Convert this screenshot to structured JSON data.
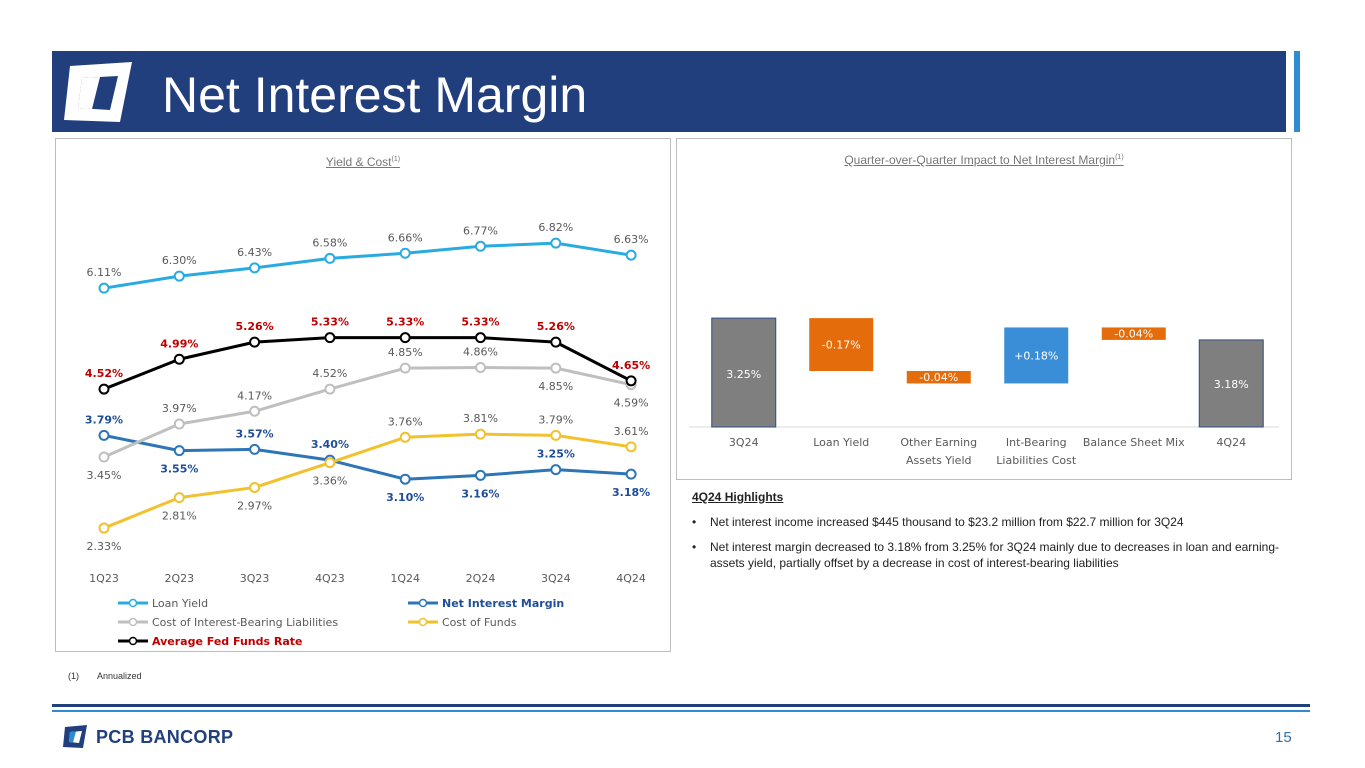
{
  "header": {
    "title": "Net Interest Margin"
  },
  "colors": {
    "navy": "#213e7d",
    "accent_blue": "#2d8dd0",
    "loan_yield": "#29abe2",
    "nim": "#2e75b6",
    "cost_ibl": "#bfbfbf",
    "cost_funds": "#f2c12e",
    "fed_funds": "#000000",
    "fed_label": "#c00000",
    "nim_label": "#1f4e99",
    "waterfall_gray": "#7f7f7f",
    "waterfall_orange": "#e46c0a",
    "waterfall_blue": "#3a8ed8"
  },
  "chart_data": [
    {
      "type": "line",
      "title": "Yield & Cost",
      "title_sup": "(1)",
      "categories": [
        "1Q23",
        "2Q23",
        "3Q23",
        "4Q23",
        "1Q24",
        "2Q24",
        "3Q24",
        "4Q24"
      ],
      "ylim": [
        2.0,
        7.2
      ],
      "series": [
        {
          "name": "Loan Yield",
          "color": "#29abe2",
          "label_color": "#595959",
          "values": [
            6.11,
            6.3,
            6.43,
            6.58,
            6.66,
            6.77,
            6.82,
            6.63
          ],
          "labels": [
            "6.11%",
            "6.30%",
            "6.43%",
            "6.58%",
            "6.66%",
            "6.77%",
            "6.82%",
            "6.63%"
          ],
          "label_pos": [
            "above",
            "above",
            "above",
            "above",
            "above",
            "above",
            "above",
            "above"
          ]
        },
        {
          "name": "Net Interest Margin",
          "color": "#2e75b6",
          "label_color": "#1f4e99",
          "values": [
            3.79,
            3.55,
            3.57,
            3.4,
            3.1,
            3.16,
            3.25,
            3.18
          ],
          "labels": [
            "3.79%",
            "3.55%",
            "3.57%",
            "3.40%",
            "3.10%",
            "3.16%",
            "3.25%",
            "3.18%"
          ],
          "label_pos": [
            "above",
            "below",
            "above",
            "above",
            "below",
            "below",
            "above",
            "below"
          ]
        },
        {
          "name": "Cost of Interest-Bearing Liabilities",
          "color": "#bfbfbf",
          "label_color": "#595959",
          "values": [
            3.45,
            3.97,
            4.17,
            4.52,
            4.85,
            4.86,
            4.85,
            4.59
          ],
          "labels": [
            "3.45%",
            "3.97%",
            "4.17%",
            "4.52%",
            "4.85%",
            "4.86%",
            "4.85%",
            "4.59%"
          ],
          "label_pos": [
            "below",
            "above",
            "above",
            "above",
            "above",
            "above",
            "below",
            "below"
          ]
        },
        {
          "name": "Cost of Funds",
          "color": "#f2c12e",
          "label_color": "#595959",
          "values": [
            2.33,
            2.81,
            2.97,
            3.36,
            3.76,
            3.81,
            3.79,
            3.61
          ],
          "labels": [
            "2.33%",
            "2.81%",
            "2.97%",
            "3.36%",
            "3.76%",
            "3.81%",
            "3.79%",
            "3.61%"
          ],
          "label_pos": [
            "below",
            "below",
            "below",
            "below",
            "above",
            "above",
            "above",
            "above"
          ]
        },
        {
          "name": "Average Fed Funds Rate",
          "color": "#000000",
          "label_color": "#c00000",
          "values": [
            4.52,
            4.99,
            5.26,
            5.33,
            5.33,
            5.33,
            5.26,
            4.65
          ],
          "labels": [
            "4.52%",
            "4.99%",
            "5.26%",
            "5.33%",
            "5.33%",
            "5.33%",
            "5.26%",
            "4.65%"
          ],
          "label_pos": [
            "above",
            "above",
            "above",
            "above",
            "above",
            "above",
            "above",
            "above"
          ]
        }
      ],
      "legend": [
        "Loan Yield",
        "Net Interest Margin",
        "Cost of Interest-Bearing Liabilities",
        "Cost of Funds",
        "Average Fed Funds Rate"
      ],
      "legend_placement": "bottom"
    },
    {
      "type": "bar",
      "subtype": "waterfall",
      "title": "Quarter-over-Quarter Impact to Net Interest Margin",
      "title_sup": "(1)",
      "categories": [
        "3Q24",
        "Loan Yield",
        "Other Earning Assets Yield",
        "Int-Bearing Liabilities Cost",
        "Balance Sheet Mix",
        "4Q24"
      ],
      "category_lines": [
        [
          "3Q24"
        ],
        [
          "Loan Yield"
        ],
        [
          "Other Earning",
          "Assets Yield"
        ],
        [
          "Int-Bearing",
          "Liabilities Cost"
        ],
        [
          "Balance Sheet Mix"
        ],
        [
          "4Q24"
        ]
      ],
      "values": [
        3.25,
        -0.17,
        -0.04,
        0.18,
        -0.04,
        3.18
      ],
      "kinds": [
        "total",
        "delta",
        "delta",
        "delta",
        "delta",
        "total"
      ],
      "labels": [
        "3.25%",
        "-0.17%",
        "-0.04%",
        "+0.18%",
        "-0.04%",
        "3.18%"
      ],
      "colors": [
        "#7f7f7f",
        "#e46c0a",
        "#e46c0a",
        "#3a8ed8",
        "#e46c0a",
        "#7f7f7f"
      ]
    }
  ],
  "highlights": {
    "title": "4Q24 Highlights",
    "bullet": "•",
    "items": [
      "Net interest income increased $445 thousand to $23.2 million from $22.7 million for 3Q24",
      "Net interest margin decreased to 3.18% from 3.25% for 3Q24 mainly due to decreases in loan and earning-assets yield, partially offset by a decrease in cost of interest-bearing liabilities"
    ]
  },
  "footnote": {
    "marker": "(1)",
    "text": "Annualized"
  },
  "footer": {
    "company": "PCB BANCORP",
    "page_number": "15"
  }
}
